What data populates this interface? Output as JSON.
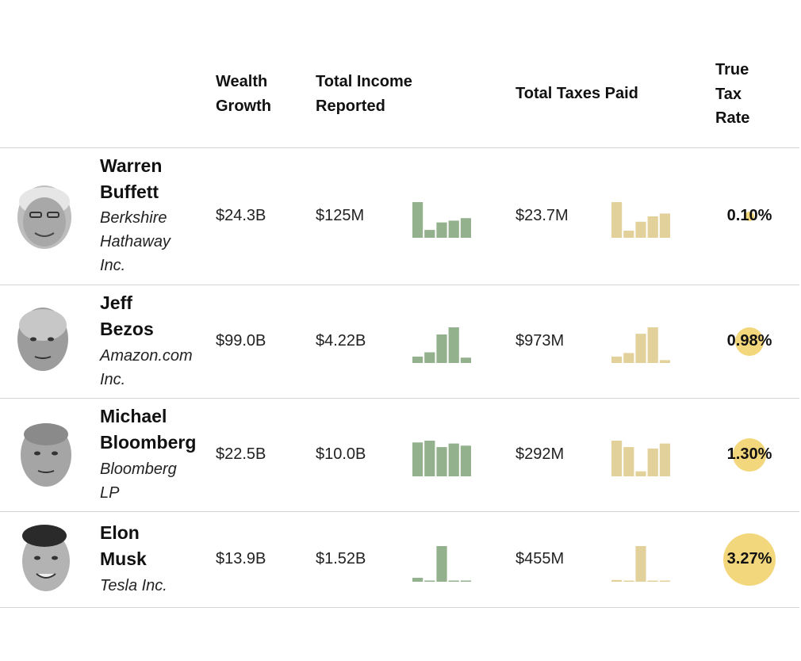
{
  "headers": {
    "wealth_growth": [
      "Wealth",
      "Growth"
    ],
    "total_income": [
      "Total Income",
      "Reported"
    ],
    "total_taxes": "Total Taxes Paid",
    "true_tax_rate": [
      "True",
      "Tax",
      "Rate"
    ]
  },
  "colors": {
    "income_bar": "#92b18c",
    "tax_bar": "#e3d19b",
    "rate_circle": "#f3d77d",
    "rule": "#d4d4d4"
  },
  "rows": [
    {
      "name_lines": [
        "Warren",
        "Buffett"
      ],
      "company_lines": [
        "Berkshire",
        "Hathaway",
        "Inc."
      ],
      "wealth_growth": "$24.3B",
      "total_income": "$125M",
      "total_taxes": "$23.7M",
      "true_tax_rate": "0.10%",
      "avatar_icon": "warren-buffett-portrait-icon"
    },
    {
      "name_lines": [
        "Jeff",
        "Bezos"
      ],
      "company_lines": [
        "Amazon.com",
        "Inc."
      ],
      "wealth_growth": "$99.0B",
      "total_income": "$4.22B",
      "total_taxes": "$973M",
      "true_tax_rate": "0.98%",
      "avatar_icon": "jeff-bezos-portrait-icon"
    },
    {
      "name_lines": [
        "Michael",
        "Bloomberg"
      ],
      "company_lines": [
        "Bloomberg",
        "LP"
      ],
      "wealth_growth": "$22.5B",
      "total_income": "$10.0B",
      "total_taxes": "$292M",
      "true_tax_rate": "1.30%",
      "avatar_icon": "michael-bloomberg-portrait-icon"
    },
    {
      "name_lines": [
        "Elon",
        "Musk"
      ],
      "company_lines": [
        "Tesla Inc."
      ],
      "wealth_growth": "$13.9B",
      "total_income": "$1.52B",
      "total_taxes": "$455M",
      "true_tax_rate": "3.27%",
      "avatar_icon": "elon-musk-portrait-icon"
    }
  ],
  "chart_data": {
    "type": "bar",
    "charts": [
      {
        "person": "Warren Buffett",
        "metric": "income",
        "values": [
          1.0,
          0.22,
          0.43,
          0.48,
          0.55
        ]
      },
      {
        "person": "Warren Buffett",
        "metric": "taxes",
        "values": [
          1.0,
          0.2,
          0.45,
          0.6,
          0.68
        ]
      },
      {
        "person": "Jeff Bezos",
        "metric": "income",
        "values": [
          0.18,
          0.3,
          0.8,
          1.0,
          0.15
        ]
      },
      {
        "person": "Jeff Bezos",
        "metric": "taxes",
        "values": [
          0.18,
          0.28,
          0.82,
          1.0,
          0.08
        ]
      },
      {
        "person": "Michael Bloomberg",
        "metric": "income",
        "values": [
          0.95,
          1.0,
          0.82,
          0.92,
          0.86
        ]
      },
      {
        "person": "Michael Bloomberg",
        "metric": "taxes",
        "values": [
          1.0,
          0.82,
          0.14,
          0.78,
          0.92
        ]
      },
      {
        "person": "Elon Musk",
        "metric": "income",
        "values": [
          0.11,
          0.02,
          1.0,
          0.02,
          0.02
        ]
      },
      {
        "person": "Elon Musk",
        "metric": "taxes",
        "values": [
          0.05,
          0.02,
          1.0,
          0.02,
          0.02
        ]
      }
    ],
    "true_tax_rate_pct": [
      0.1,
      0.98,
      1.3,
      3.27
    ]
  }
}
